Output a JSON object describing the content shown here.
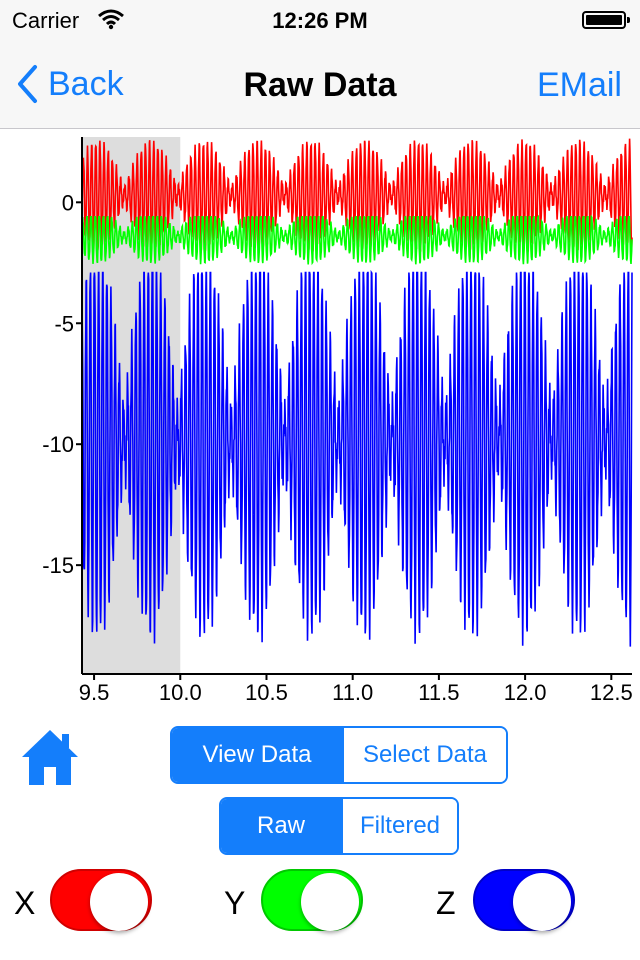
{
  "status_bar": {
    "carrier": "Carrier",
    "time": "12:26 PM",
    "wifi_icon": "wifi-icon",
    "battery_icon": "battery-icon"
  },
  "nav": {
    "back_label": "Back",
    "title": "Raw Data",
    "email_label": "EMail",
    "back_icon": "chevron-left-icon"
  },
  "chart_data": {
    "type": "line",
    "title": "",
    "xlabel": "",
    "ylabel": "",
    "xlim": [
      9.43,
      12.62
    ],
    "ylim": [
      -19.5,
      2.7
    ],
    "x_ticks": [
      "9.5",
      "10.0",
      "10.5",
      "11.0",
      "11.5",
      "12.0",
      "12.5"
    ],
    "x_tick_values": [
      9.5,
      10.0,
      10.5,
      11.0,
      11.5,
      12.0,
      12.5
    ],
    "y_ticks": [
      "0",
      "-5",
      "-10",
      "-15"
    ],
    "y_tick_values": [
      0,
      -5,
      -10,
      -15
    ],
    "grid": false,
    "selection_range": [
      9.43,
      10.0
    ],
    "series": [
      {
        "color": "#ff0000",
        "center": 0.3,
        "amplitude": 2.2,
        "beat_period": 0.31,
        "min": -2.6,
        "max": 2.7
      },
      {
        "color": "#00ff00",
        "center": -1.4,
        "amplitude": 1.1,
        "beat_period": 0.31,
        "min": -2.8,
        "max": -0.6
      },
      {
        "color": "#0000ff",
        "center": -9.8,
        "amplitude": 8.0,
        "beat_period": 0.31,
        "min": -19.1,
        "max": -2.9
      }
    ]
  },
  "controls": {
    "home_icon": "home-icon",
    "view_segment": {
      "options": [
        "View Data",
        "Select Data"
      ],
      "selected": "View Data"
    },
    "data_segment": {
      "options": [
        "Raw",
        "Filtered"
      ],
      "selected": "Raw"
    },
    "toggles": [
      {
        "label": "X",
        "color": "#ff0000",
        "border": "#d00000",
        "on": true
      },
      {
        "label": "Y",
        "color": "#00ff00",
        "border": "#00c800",
        "on": true
      },
      {
        "label": "Z",
        "color": "#0000ff",
        "border": "#0000c8",
        "on": true
      }
    ]
  }
}
